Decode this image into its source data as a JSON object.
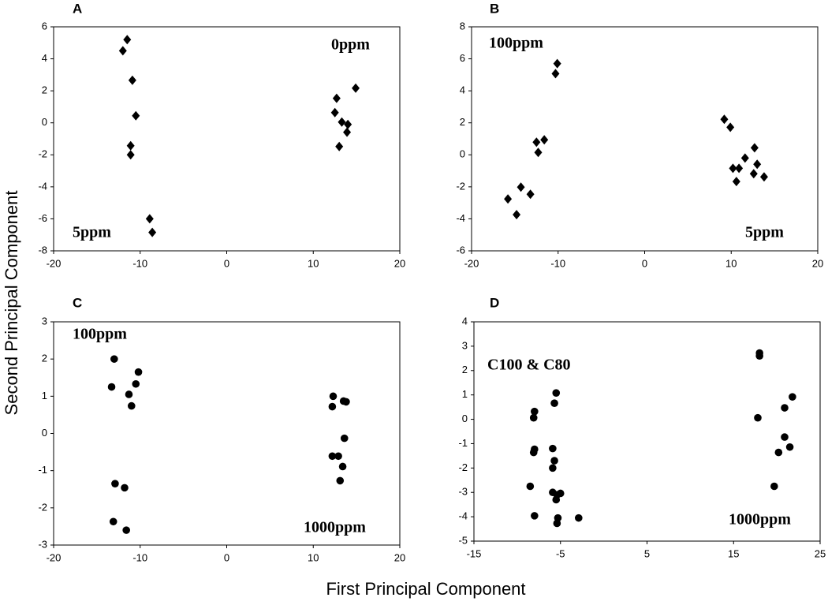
{
  "xlabel": "First Principal Component",
  "ylabel": "Second Principal Component",
  "chart_data": [
    {
      "type": "scatter",
      "title": "A",
      "annotations": [
        "0ppm",
        "5ppm"
      ],
      "marker": "diamond",
      "color": "#000000",
      "xlim": [
        -20,
        20
      ],
      "ylim": [
        -8,
        6
      ],
      "xticks": [
        -20,
        -10,
        0,
        10,
        20
      ],
      "yticks": [
        -8,
        -6,
        -4,
        -2,
        0,
        2,
        4,
        6
      ],
      "x": [
        -12.0,
        -11.5,
        -10.9,
        -10.5,
        -11.1,
        -11.1,
        -8.9,
        -8.6,
        14.9,
        12.7,
        12.5,
        13.3,
        14.0,
        13.9,
        13.0
      ],
      "y": [
        4.5,
        5.2,
        2.66,
        0.44,
        -1.43,
        -2.0,
        -6.0,
        -6.85,
        2.17,
        1.53,
        0.64,
        0.05,
        -0.1,
        -0.59,
        -1.48
      ]
    },
    {
      "type": "scatter",
      "title": "B",
      "annotations": [
        "100ppm",
        "5ppm"
      ],
      "marker": "diamond",
      "color": "#000000",
      "xlim": [
        -20,
        20
      ],
      "ylim": [
        -6,
        8
      ],
      "xticks": [
        -20,
        -10,
        0,
        10,
        20
      ],
      "yticks": [
        -6,
        -4,
        -2,
        0,
        2,
        4,
        6,
        8
      ],
      "x": [
        -10.1,
        -10.3,
        -12.5,
        -11.6,
        -12.3,
        -14.3,
        -13.2,
        -15.8,
        -14.8,
        9.2,
        9.9,
        11.6,
        12.7,
        13.0,
        10.2,
        10.9,
        10.6,
        12.6,
        13.8
      ],
      "y": [
        5.7,
        5.07,
        0.79,
        0.94,
        0.15,
        -2.02,
        -2.46,
        -2.76,
        -3.74,
        2.22,
        1.72,
        -0.2,
        0.44,
        -0.59,
        -0.84,
        -0.84,
        -1.67,
        -1.18,
        -1.38
      ]
    },
    {
      "type": "scatter",
      "title": "C",
      "annotations": [
        "100ppm",
        "1000ppm"
      ],
      "marker": "circle",
      "color": "#000000",
      "xlim": [
        -20,
        20
      ],
      "ylim": [
        -3,
        3
      ],
      "xticks": [
        -20,
        -10,
        0,
        10,
        20
      ],
      "yticks": [
        -3,
        -2,
        -1,
        0,
        1,
        2,
        3
      ],
      "x": [
        -13.0,
        -13.3,
        -10.2,
        -10.5,
        -11.3,
        -11.0,
        -12.9,
        -11.8,
        -13.1,
        -11.6,
        12.3,
        12.2,
        13.5,
        13.8,
        13.6,
        12.2,
        12.9,
        13.4,
        13.1
      ],
      "y": [
        2.0,
        1.25,
        1.65,
        1.33,
        1.05,
        0.74,
        -1.35,
        -1.46,
        -2.37,
        -2.6,
        1.0,
        0.72,
        0.87,
        0.85,
        -0.13,
        -0.61,
        -0.61,
        -0.89,
        -1.27
      ]
    },
    {
      "type": "scatter",
      "title": "D",
      "annotations": [
        "C100 & C80",
        "1000ppm"
      ],
      "marker": "circle",
      "color": "#000000",
      "xlim": [
        -15,
        25
      ],
      "ylim": [
        -5,
        4
      ],
      "xticks": [
        -15,
        -5,
        5,
        15,
        25
      ],
      "yticks": [
        -5,
        -4,
        -3,
        -2,
        -1,
        0,
        1,
        2,
        3,
        4
      ],
      "x": [
        -8.5,
        -8.0,
        -8.1,
        -8.0,
        -8.1,
        -8.0,
        -5.9,
        -5.9,
        -5.7,
        -5.5,
        -5.7,
        -5.9,
        -5.4,
        -5.0,
        -5.5,
        -5.3,
        -5.4,
        -2.9,
        18.0,
        18.0,
        17.8,
        21.8,
        20.9,
        20.9,
        21.5,
        20.2,
        19.7
      ],
      "y": [
        -2.75,
        0.32,
        0.06,
        -1.23,
        -1.36,
        -3.96,
        -1.2,
        -2.0,
        -1.7,
        1.08,
        0.66,
        -3.0,
        -3.1,
        -3.04,
        -3.3,
        -4.05,
        -4.27,
        -4.05,
        2.72,
        2.6,
        0.06,
        0.92,
        0.47,
        -0.73,
        -1.14,
        -1.36,
        -2.75
      ]
    }
  ]
}
